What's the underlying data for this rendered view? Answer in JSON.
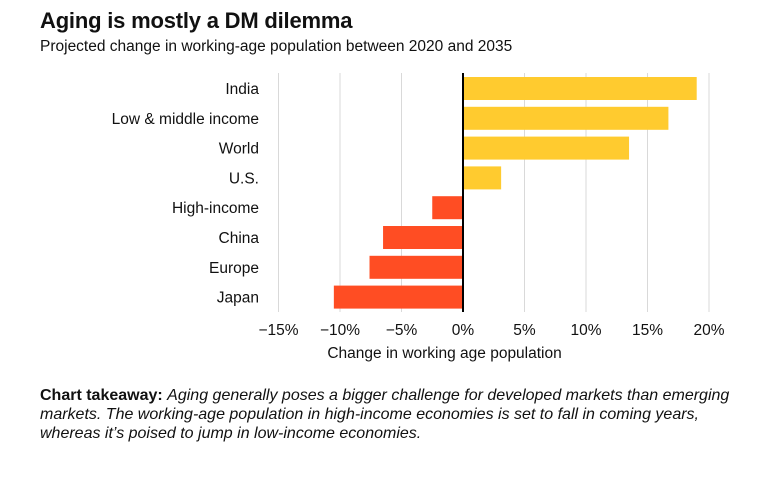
{
  "title": "Aging is mostly a DM dilemma",
  "subtitle": "Projected change in working-age population between 2020 and 2035",
  "takeaway": {
    "label": "Chart takeaway:",
    "text": "Aging generally poses a bigger challenge for developed markets than emerging markets. The working-age population in high-income economies is set to fall in coming years, whereas it’s poised to jump in low-income economies."
  },
  "colors": {
    "positive": "#FFCB2F",
    "negative": "#FF4D23",
    "grid": "#d9d9d9",
    "zero_line": "#000000"
  },
  "chart_data": {
    "type": "bar",
    "orientation": "horizontal",
    "categories": [
      "India",
      "Low & middle income",
      "World",
      "U.S.",
      "High-income",
      "China",
      "Europe",
      "Japan"
    ],
    "values": [
      19,
      16.7,
      13.5,
      3.1,
      -2.5,
      -6.5,
      -7.6,
      -10.5
    ],
    "xlabel": "Change in working age population",
    "ylabel": "",
    "xlim": [
      -15,
      20
    ],
    "ticks": [
      -15,
      -10,
      -5,
      0,
      5,
      10,
      15,
      20
    ],
    "tick_labels": [
      "−15%",
      "−10%",
      "−5%",
      "0%",
      "5%",
      "10%",
      "15%",
      "20%"
    ],
    "grid": true
  }
}
